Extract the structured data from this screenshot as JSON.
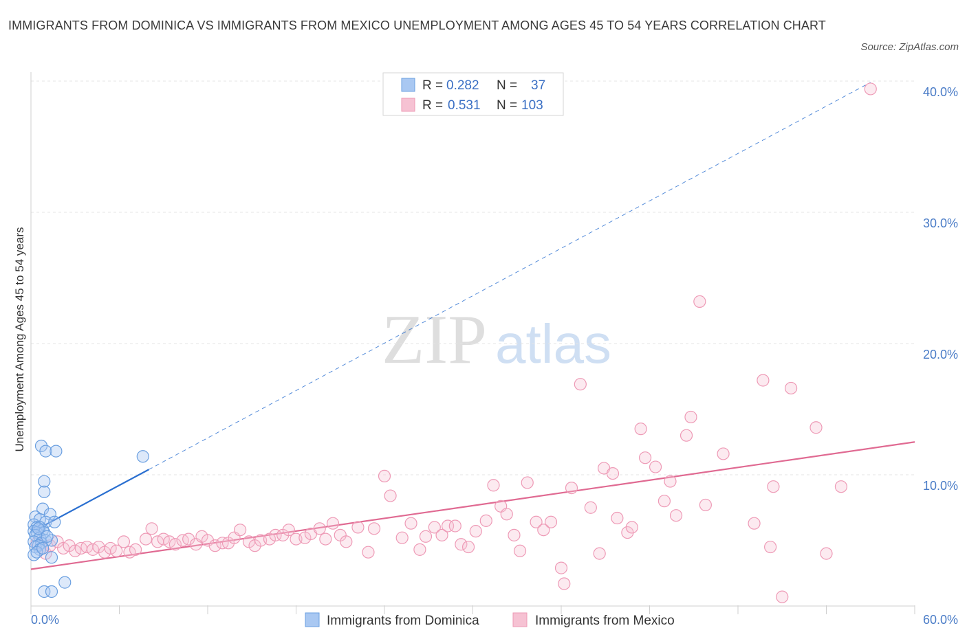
{
  "title": "IMMIGRANTS FROM DOMINICA VS IMMIGRANTS FROM MEXICO UNEMPLOYMENT AMONG AGES 45 TO 54 YEARS CORRELATION CHART",
  "source": "Source: ZipAtlas.com",
  "watermark": {
    "zip": "ZIP",
    "atlas": "atlas"
  },
  "colors": {
    "dominica_fill": "#a9c8f2",
    "dominica_stroke": "#6a9fe0",
    "dominica_line": "#2a6fd0",
    "mexico_fill": "#f6c2d3",
    "mexico_stroke": "#ee9ab6",
    "mexico_line": "#e06a92",
    "tick": "#4a7cc7",
    "grid": "#e4e4e4"
  },
  "legend": {
    "rows": [
      {
        "r_label": "R =",
        "r_value": "0.282",
        "n_label": "N =",
        "n_value": "37"
      },
      {
        "r_label": "R =",
        "r_value": "0.531",
        "n_label": "N =",
        "n_value": "103"
      }
    ]
  },
  "chart_data": {
    "type": "scatter",
    "title": "IMMIGRANTS FROM DOMINICA VS IMMIGRANTS FROM MEXICO UNEMPLOYMENT AMONG AGES 45 TO 54 YEARS CORRELATION CHART",
    "xlabel": "",
    "ylabel": "Unemployment Among Ages 45 to 54 years",
    "xlim": [
      0,
      60
    ],
    "ylim": [
      0,
      40
    ],
    "x_tick_labels": [
      "0.0%",
      "60.0%"
    ],
    "y_ticks": [
      10,
      20,
      30,
      40
    ],
    "y_tick_labels": [
      "10.0%",
      "20.0%",
      "30.0%",
      "40.0%"
    ],
    "grid": true,
    "series": [
      {
        "name": "Immigrants from Dominica",
        "r": 0.282,
        "n": 37,
        "trend": {
          "x0": 0,
          "y0": 5.6,
          "x1": 8,
          "y1": 10.4,
          "solid_until": 8,
          "dashed_to_x": 57,
          "dashed_to_y": 39.9
        },
        "points": [
          [
            0.7,
            12.2
          ],
          [
            1.0,
            11.8
          ],
          [
            1.7,
            11.8
          ],
          [
            0.9,
            9.5
          ],
          [
            0.9,
            8.7
          ],
          [
            0.8,
            7.4
          ],
          [
            1.3,
            7.0
          ],
          [
            0.3,
            6.8
          ],
          [
            0.6,
            6.6
          ],
          [
            1.0,
            6.4
          ],
          [
            1.6,
            6.4
          ],
          [
            0.2,
            6.2
          ],
          [
            0.4,
            6.0
          ],
          [
            0.6,
            6.0
          ],
          [
            0.8,
            5.8
          ],
          [
            0.2,
            5.7
          ],
          [
            0.4,
            5.6
          ],
          [
            0.9,
            5.6
          ],
          [
            0.3,
            5.4
          ],
          [
            0.6,
            5.2
          ],
          [
            1.0,
            5.0
          ],
          [
            1.4,
            5.0
          ],
          [
            0.2,
            4.9
          ],
          [
            0.7,
            4.8
          ],
          [
            0.5,
            4.6
          ],
          [
            0.3,
            4.5
          ],
          [
            0.6,
            4.3
          ],
          [
            0.2,
            3.9
          ],
          [
            1.4,
            3.7
          ],
          [
            0.9,
            1.1
          ],
          [
            1.4,
            1.1
          ],
          [
            2.3,
            1.8
          ],
          [
            7.6,
            11.4
          ],
          [
            0.5,
            5.9
          ],
          [
            1.1,
            5.3
          ],
          [
            0.4,
            4.1
          ],
          [
            0.8,
            4.4
          ]
        ]
      },
      {
        "name": "Immigrants from Mexico",
        "r": 0.531,
        "n": 103,
        "trend": {
          "x0": 0,
          "y0": 2.8,
          "x1": 60,
          "y1": 12.5
        },
        "points": [
          [
            0.4,
            4.8
          ],
          [
            0.8,
            4.4
          ],
          [
            1.0,
            4.0
          ],
          [
            1.3,
            4.6
          ],
          [
            1.8,
            4.9
          ],
          [
            2.2,
            4.4
          ],
          [
            2.6,
            4.6
          ],
          [
            3.0,
            4.2
          ],
          [
            3.4,
            4.4
          ],
          [
            3.8,
            4.5
          ],
          [
            4.2,
            4.3
          ],
          [
            4.6,
            4.5
          ],
          [
            5.0,
            4.1
          ],
          [
            5.4,
            4.4
          ],
          [
            5.8,
            4.2
          ],
          [
            6.3,
            4.9
          ],
          [
            6.7,
            4.1
          ],
          [
            7.1,
            4.3
          ],
          [
            7.8,
            5.1
          ],
          [
            8.2,
            5.9
          ],
          [
            8.6,
            4.9
          ],
          [
            9.0,
            5.1
          ],
          [
            9.4,
            4.9
          ],
          [
            9.8,
            4.7
          ],
          [
            10.3,
            5.0
          ],
          [
            10.7,
            5.1
          ],
          [
            11.2,
            4.7
          ],
          [
            11.6,
            5.3
          ],
          [
            12.0,
            5.0
          ],
          [
            12.5,
            4.6
          ],
          [
            13.0,
            4.8
          ],
          [
            13.4,
            4.8
          ],
          [
            13.8,
            5.2
          ],
          [
            14.2,
            5.8
          ],
          [
            14.8,
            4.9
          ],
          [
            15.2,
            4.6
          ],
          [
            15.6,
            5.0
          ],
          [
            16.2,
            5.1
          ],
          [
            16.6,
            5.4
          ],
          [
            17.1,
            5.4
          ],
          [
            17.5,
            5.8
          ],
          [
            18.0,
            5.1
          ],
          [
            18.6,
            5.2
          ],
          [
            19.0,
            5.5
          ],
          [
            19.6,
            5.9
          ],
          [
            20.0,
            5.1
          ],
          [
            20.5,
            6.3
          ],
          [
            21.0,
            5.4
          ],
          [
            21.4,
            4.9
          ],
          [
            22.2,
            6.0
          ],
          [
            22.9,
            4.1
          ],
          [
            23.3,
            5.9
          ],
          [
            24.0,
            9.9
          ],
          [
            24.4,
            8.4
          ],
          [
            25.2,
            5.2
          ],
          [
            25.8,
            6.3
          ],
          [
            26.4,
            4.3
          ],
          [
            26.8,
            5.3
          ],
          [
            27.4,
            6.0
          ],
          [
            27.9,
            5.4
          ],
          [
            28.3,
            6.1
          ],
          [
            28.8,
            6.1
          ],
          [
            29.2,
            4.7
          ],
          [
            29.7,
            4.5
          ],
          [
            30.2,
            5.7
          ],
          [
            30.9,
            6.5
          ],
          [
            31.4,
            9.2
          ],
          [
            31.9,
            7.6
          ],
          [
            32.3,
            7.0
          ],
          [
            32.8,
            5.4
          ],
          [
            33.2,
            4.2
          ],
          [
            33.7,
            9.4
          ],
          [
            34.3,
            6.4
          ],
          [
            34.8,
            5.8
          ],
          [
            35.3,
            6.4
          ],
          [
            36.0,
            2.9
          ],
          [
            36.7,
            9.0
          ],
          [
            37.3,
            16.9
          ],
          [
            38.0,
            7.5
          ],
          [
            38.6,
            4.0
          ],
          [
            38.9,
            10.5
          ],
          [
            39.5,
            10.1
          ],
          [
            39.8,
            6.7
          ],
          [
            40.5,
            5.6
          ],
          [
            40.8,
            6.0
          ],
          [
            41.4,
            13.5
          ],
          [
            41.7,
            11.3
          ],
          [
            42.4,
            10.6
          ],
          [
            43.0,
            8.0
          ],
          [
            43.4,
            9.5
          ],
          [
            43.8,
            6.9
          ],
          [
            44.5,
            13.0
          ],
          [
            44.8,
            14.4
          ],
          [
            45.4,
            23.2
          ],
          [
            45.8,
            7.7
          ],
          [
            47.0,
            11.6
          ],
          [
            49.1,
            6.3
          ],
          [
            49.7,
            17.2
          ],
          [
            50.4,
            9.1
          ],
          [
            51.0,
            0.7
          ],
          [
            51.6,
            16.6
          ],
          [
            53.3,
            13.6
          ],
          [
            54.0,
            4.0
          ],
          [
            55.0,
            9.1
          ],
          [
            57.0,
            39.4
          ],
          [
            50.2,
            4.5
          ],
          [
            36.2,
            1.7
          ]
        ]
      }
    ]
  },
  "bottom_legend": {
    "dominica": "Immigrants from Dominica",
    "mexico": "Immigrants from Mexico"
  }
}
